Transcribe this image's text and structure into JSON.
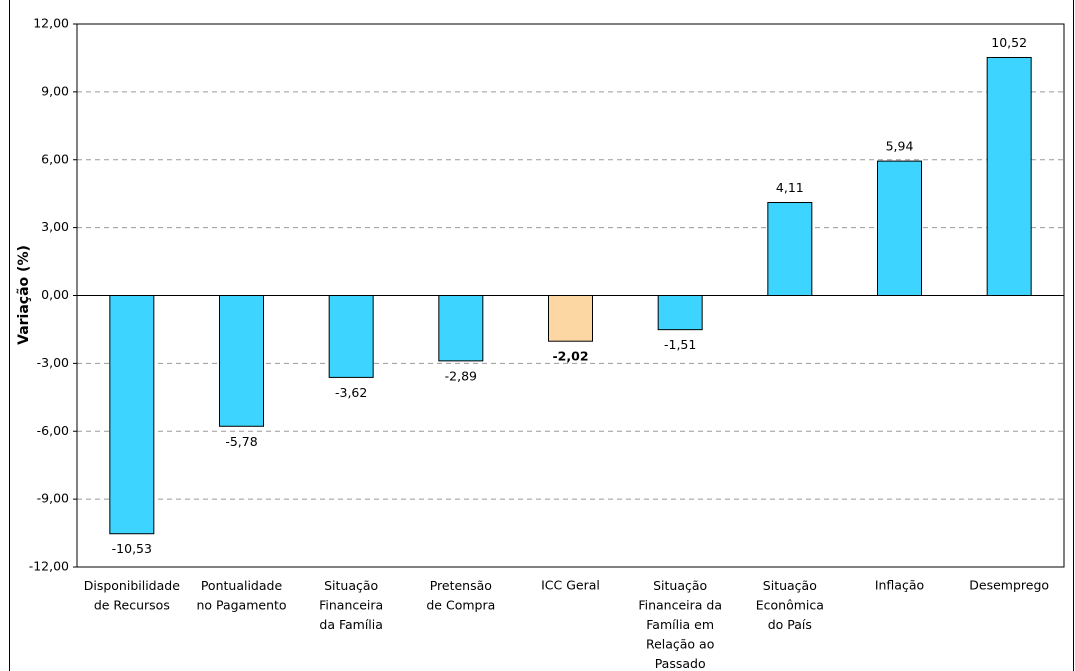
{
  "chart_data": {
    "type": "bar",
    "y_label": "Variação (%)",
    "categories": [
      "Disponibilidade\nde Recursos",
      "Pontualidade\nno Pagamento",
      "Situação\nFinanceira\nda Família",
      "Pretensão\nde Compra",
      "ICC Geral",
      "Situação\nFinanceira da\nFamília em\nRelação ao\nPassado",
      "Situação\nEconômica\ndo País",
      "Inflação",
      "Desemprego"
    ],
    "values": [
      -10.53,
      -5.78,
      -3.62,
      -2.89,
      -2.02,
      -1.51,
      4.11,
      5.94,
      10.52
    ],
    "value_labels": [
      "-10,53",
      "-5,78",
      "-3,62",
      "-2,89",
      "-2,02",
      "-1,51",
      "4,11",
      "5,94",
      "10,52"
    ],
    "colors": [
      "#3dd4ff",
      "#3dd4ff",
      "#3dd4ff",
      "#3dd4ff",
      "#fcd7a4",
      "#3dd4ff",
      "#3dd4ff",
      "#3dd4ff",
      "#3dd4ff"
    ],
    "highlight_category": "ICC Geral",
    "ylim": [
      -12,
      12
    ],
    "yticks": [
      {
        "value": -12,
        "label": "-12,00"
      },
      {
        "value": -9,
        "label": "-9,00"
      },
      {
        "value": -6,
        "label": "-6,00"
      },
      {
        "value": -3,
        "label": "-3,00"
      },
      {
        "value": 0,
        "label": "0,00"
      },
      {
        "value": 3,
        "label": "3,00"
      },
      {
        "value": 6,
        "label": "6,00"
      },
      {
        "value": 9,
        "label": "9,00"
      },
      {
        "value": 12,
        "label": "12,00"
      }
    ],
    "grid": true
  }
}
